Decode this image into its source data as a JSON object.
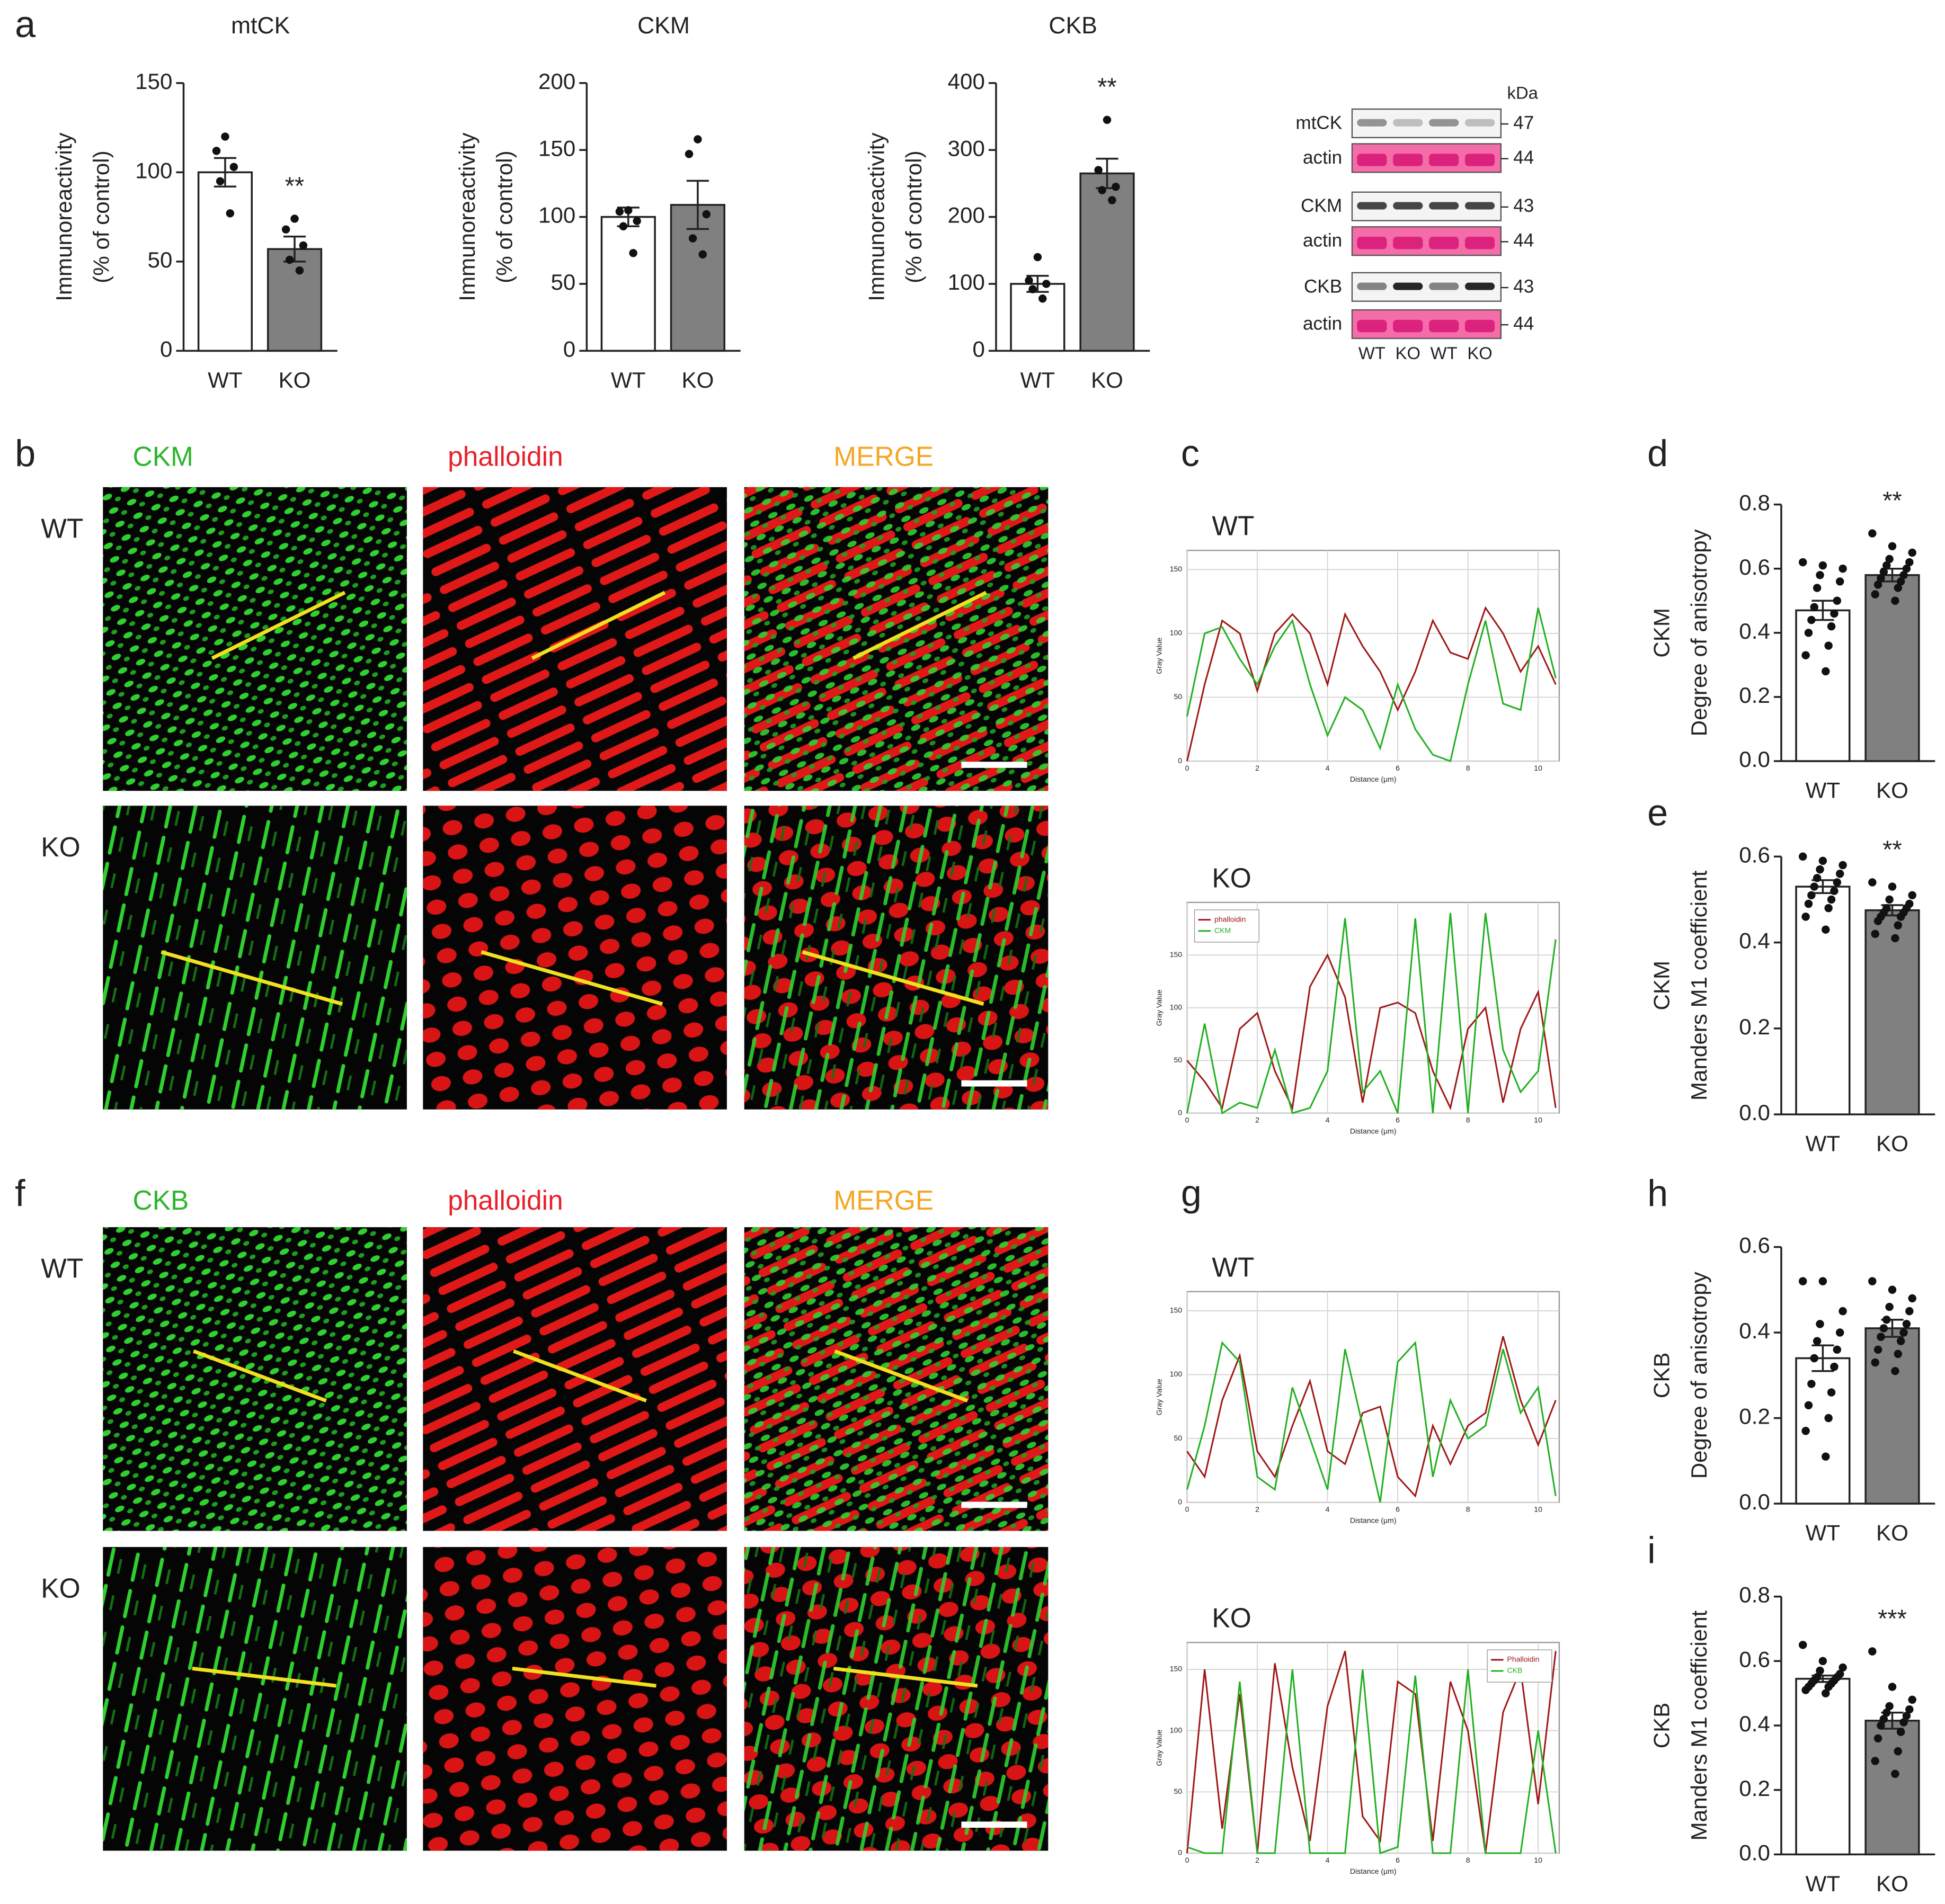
{
  "panel_letters": [
    "a",
    "b",
    "c",
    "d",
    "e",
    "f",
    "g",
    "h",
    "i"
  ],
  "image_panels": [
    {
      "channels": [
        "CKM",
        "phalloidin",
        "MERGE"
      ],
      "rows": [
        "WT",
        "KO"
      ]
    },
    {
      "channels": [
        "CKB",
        "phalloidin",
        "MERGE"
      ],
      "rows": [
        "WT",
        "KO"
      ]
    }
  ],
  "blot": {
    "unit": "kDa",
    "rows": [
      {
        "label": "mtCK",
        "kda": 47
      },
      {
        "label": "actin",
        "kda": 44
      },
      {
        "label": "CKM",
        "kda": 43
      },
      {
        "label": "actin",
        "kda": 44
      },
      {
        "label": "CKB",
        "kda": 43
      },
      {
        "label": "actin",
        "kda": 44
      }
    ],
    "lanes": [
      "WT",
      "KO",
      "WT",
      "KO"
    ]
  },
  "chart_data": [
    {
      "type": "bar",
      "title": "mtCK",
      "ylabel": [
        "Immunoreactivity",
        "(% of control)"
      ],
      "categories": [
        "WT",
        "KO"
      ],
      "values": [
        100,
        57
      ],
      "errors": [
        8,
        7
      ],
      "colors": [
        "#ffffff",
        "#808080"
      ],
      "points": [
        [
          120,
          112,
          103,
          95,
          77
        ],
        [
          74,
          68,
          59,
          51,
          45
        ]
      ],
      "annotation": "**",
      "ylim": [
        0,
        150
      ],
      "yticks": [
        0,
        50,
        100,
        150
      ]
    },
    {
      "type": "bar",
      "title": "CKM",
      "ylabel": [
        "Immunoreactivity",
        "(% of control)"
      ],
      "categories": [
        "WT",
        "KO"
      ],
      "values": [
        100,
        109
      ],
      "errors": [
        7,
        18
      ],
      "colors": [
        "#ffffff",
        "#808080"
      ],
      "points": [
        [
          105,
          104,
          97,
          93,
          73
        ],
        [
          158,
          147,
          102,
          84,
          72
        ]
      ],
      "ylim": [
        0,
        200
      ],
      "yticks": [
        0,
        50,
        100,
        150,
        200
      ]
    },
    {
      "type": "bar",
      "title": "CKB",
      "ylabel": [
        "Immunoreactivity",
        "(% of control)"
      ],
      "categories": [
        "WT",
        "KO"
      ],
      "values": [
        100,
        265
      ],
      "errors": [
        12,
        22
      ],
      "colors": [
        "#ffffff",
        "#808080"
      ],
      "points": [
        [
          140,
          105,
          100,
          92,
          78
        ],
        [
          345,
          270,
          245,
          240,
          225
        ]
      ],
      "annotation": "**",
      "ylim": [
        0,
        400
      ],
      "yticks": [
        0,
        100,
        200,
        300,
        400
      ]
    },
    {
      "type": "line",
      "title": "WT",
      "xlabel": "Distance (µm)",
      "ylabel": "Gray Value",
      "grid": true,
      "legend": false,
      "x": [
        0,
        0.5,
        1,
        1.5,
        2,
        2.5,
        3,
        3.5,
        4,
        4.5,
        5,
        5.5,
        6,
        6.5,
        7,
        7.5,
        8,
        8.5,
        9,
        9.5,
        10,
        10.5
      ],
      "series": [
        {
          "color": "#a01818",
          "values": [
            0,
            60,
            110,
            100,
            55,
            100,
            115,
            100,
            60,
            115,
            90,
            70,
            40,
            70,
            110,
            85,
            80,
            120,
            100,
            70,
            90,
            60
          ]
        },
        {
          "color": "#22b022",
          "values": [
            35,
            100,
            105,
            80,
            60,
            90,
            110,
            60,
            20,
            50,
            40,
            10,
            60,
            25,
            5,
            0,
            60,
            110,
            45,
            40,
            120,
            65
          ]
        }
      ],
      "xlim": [
        0,
        10.6
      ],
      "xticks": [
        0,
        2,
        4,
        6,
        8,
        10
      ],
      "ylim": [
        0,
        165
      ],
      "yticks": [
        0,
        50,
        100,
        150
      ]
    },
    {
      "type": "line",
      "title": "KO",
      "xlabel": "Distance (µm)",
      "ylabel": "Gray Value",
      "grid": true,
      "legend": true,
      "x": [
        0,
        0.5,
        1,
        1.5,
        2,
        2.5,
        3,
        3.5,
        4,
        4.5,
        5,
        5.5,
        6,
        6.5,
        7,
        7.5,
        8,
        8.5,
        9,
        9.5,
        10,
        10.5
      ],
      "series": [
        {
          "name": "phalloidin",
          "color": "#a01818",
          "values": [
            50,
            30,
            5,
            80,
            95,
            40,
            5,
            120,
            150,
            110,
            10,
            100,
            105,
            95,
            40,
            5,
            80,
            100,
            10,
            80,
            115,
            5
          ]
        },
        {
          "name": "CKM",
          "color": "#22b022",
          "values": [
            0,
            85,
            0,
            10,
            5,
            60,
            0,
            5,
            40,
            185,
            20,
            40,
            0,
            185,
            0,
            190,
            0,
            190,
            60,
            20,
            40,
            165
          ]
        }
      ],
      "xlim": [
        0,
        10.6
      ],
      "xticks": [
        0,
        2,
        4,
        6,
        8,
        10
      ],
      "ylim": [
        0,
        200
      ],
      "yticks": [
        0,
        50,
        100,
        150
      ]
    },
    {
      "type": "bar",
      "ylabel": [
        "CKM",
        "Degree of anisotropy"
      ],
      "categories": [
        "WT",
        "KO"
      ],
      "values": [
        0.47,
        0.58
      ],
      "errors": [
        0.03,
        0.02
      ],
      "colors": [
        "#ffffff",
        "#808080"
      ],
      "points": [
        [
          0.62,
          0.61,
          0.6,
          0.58,
          0.56,
          0.54,
          0.5,
          0.48,
          0.46,
          0.44,
          0.42,
          0.4,
          0.36,
          0.33,
          0.28
        ],
        [
          0.71,
          0.67,
          0.65,
          0.63,
          0.62,
          0.61,
          0.6,
          0.59,
          0.58,
          0.57,
          0.56,
          0.55,
          0.54,
          0.52,
          0.5
        ]
      ],
      "annotation": "**",
      "ylim": [
        0,
        0.8
      ],
      "yticks": [
        {
          "value": 0,
          "label": "0.0"
        },
        0.2,
        0.4,
        0.6,
        0.8
      ]
    },
    {
      "type": "bar",
      "ylabel": [
        "CKM",
        "Manders M1 coefficient"
      ],
      "categories": [
        "WT",
        "KO"
      ],
      "values": [
        0.53,
        0.475
      ],
      "errors": [
        0.015,
        0.012
      ],
      "colors": [
        "#ffffff",
        "#808080"
      ],
      "points": [
        [
          0.6,
          0.59,
          0.58,
          0.57,
          0.56,
          0.55,
          0.54,
          0.53,
          0.52,
          0.51,
          0.5,
          0.49,
          0.48,
          0.46,
          0.43
        ],
        [
          0.54,
          0.53,
          0.51,
          0.5,
          0.49,
          0.48,
          0.48,
          0.47,
          0.47,
          0.46,
          0.46,
          0.45,
          0.44,
          0.42,
          0.41
        ]
      ],
      "annotation": "**",
      "ylim": [
        0,
        0.6
      ],
      "yticks": [
        {
          "value": 0,
          "label": "0.0"
        },
        0.2,
        0.4,
        0.6
      ]
    },
    {
      "type": "line",
      "title": "WT",
      "xlabel": "Distance (µm)",
      "ylabel": "Gray Value",
      "grid": true,
      "legend": false,
      "x": [
        0,
        0.5,
        1,
        1.5,
        2,
        2.5,
        3,
        3.5,
        4,
        4.5,
        5,
        5.5,
        6,
        6.5,
        7,
        7.5,
        8,
        8.5,
        9,
        9.5,
        10,
        10.5
      ],
      "series": [
        {
          "color": "#a01818",
          "values": [
            40,
            20,
            80,
            115,
            40,
            20,
            60,
            95,
            40,
            30,
            70,
            75,
            20,
            5,
            60,
            30,
            60,
            70,
            130,
            80,
            45,
            80
          ]
        },
        {
          "color": "#22b022",
          "values": [
            10,
            60,
            125,
            110,
            20,
            10,
            90,
            50,
            10,
            120,
            60,
            0,
            110,
            125,
            20,
            80,
            50,
            60,
            120,
            70,
            90,
            5
          ]
        }
      ],
      "xlim": [
        0,
        10.6
      ],
      "xticks": [
        0,
        2,
        4,
        6,
        8,
        10
      ],
      "ylim": [
        0,
        165
      ],
      "yticks": [
        0,
        50,
        100,
        150
      ]
    },
    {
      "type": "line",
      "title": "KO",
      "xlabel": "Distance (µm)",
      "ylabel": "Gray Value",
      "grid": true,
      "legend": true,
      "x": [
        0,
        0.5,
        1,
        1.5,
        2,
        2.5,
        3,
        3.5,
        4,
        4.5,
        5,
        5.5,
        6,
        6.5,
        7,
        7.5,
        8,
        8.5,
        9,
        9.5,
        10,
        10.5
      ],
      "series": [
        {
          "name": "Phalloidin",
          "color": "#a01818",
          "values": [
            0,
            150,
            20,
            130,
            0,
            155,
            70,
            10,
            120,
            165,
            30,
            10,
            140,
            130,
            10,
            140,
            100,
            0,
            115,
            150,
            40,
            165
          ]
        },
        {
          "name": "CKB",
          "color": "#22b022",
          "values": [
            5,
            0,
            0,
            140,
            0,
            0,
            150,
            0,
            0,
            0,
            150,
            0,
            5,
            145,
            0,
            0,
            150,
            0,
            0,
            0,
            100,
            0
          ]
        }
      ],
      "xlim": [
        0,
        10.6
      ],
      "xticks": [
        0,
        2,
        4,
        6,
        8,
        10
      ],
      "ylim": [
        0,
        172
      ],
      "yticks": [
        0,
        50,
        100,
        150
      ]
    },
    {
      "type": "bar",
      "ylabel": [
        "CKB",
        "Degree of anisotropy"
      ],
      "categories": [
        "WT",
        "KO"
      ],
      "values": [
        0.34,
        0.41
      ],
      "errors": [
        0.03,
        0.02
      ],
      "colors": [
        "#ffffff",
        "#808080"
      ],
      "points": [
        [
          0.52,
          0.52,
          0.45,
          0.42,
          0.4,
          0.38,
          0.36,
          0.34,
          0.32,
          0.28,
          0.26,
          0.23,
          0.2,
          0.17,
          0.11
        ],
        [
          0.52,
          0.5,
          0.48,
          0.46,
          0.45,
          0.43,
          0.42,
          0.41,
          0.4,
          0.39,
          0.38,
          0.36,
          0.35,
          0.33,
          0.31
        ]
      ],
      "ylim": [
        0,
        0.6
      ],
      "yticks": [
        {
          "value": 0,
          "label": "0.0"
        },
        0.2,
        0.4,
        0.6
      ]
    },
    {
      "type": "bar",
      "ylabel": [
        "CKB",
        "Manders M1 coefficient"
      ],
      "categories": [
        "WT",
        "KO"
      ],
      "values": [
        0.545,
        0.415
      ],
      "errors": [
        0.01,
        0.025
      ],
      "colors": [
        "#ffffff",
        "#808080"
      ],
      "points": [
        [
          0.65,
          0.6,
          0.58,
          0.57,
          0.56,
          0.55,
          0.55,
          0.54,
          0.54,
          0.53,
          0.53,
          0.52,
          0.52,
          0.51,
          0.5
        ],
        [
          0.63,
          0.52,
          0.48,
          0.46,
          0.45,
          0.44,
          0.43,
          0.42,
          0.41,
          0.4,
          0.38,
          0.36,
          0.32,
          0.29,
          0.25
        ]
      ],
      "annotation": "***",
      "ylim": [
        0,
        0.8
      ],
      "yticks": [
        {
          "value": 0,
          "label": "0.0"
        },
        0.2,
        0.4,
        0.6,
        0.8
      ]
    }
  ]
}
